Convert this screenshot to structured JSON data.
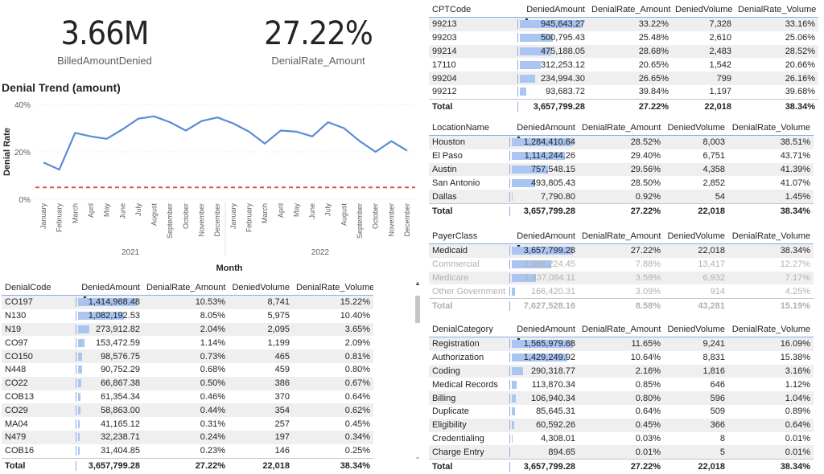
{
  "kpis": {
    "billed_amount_denied": {
      "value": "3.66M",
      "label": "BilledAmountDenied"
    },
    "denial_rate_amount": {
      "value": "27.22%",
      "label": "DenialRate_Amount"
    }
  },
  "trend": {
    "title": "Denial Trend (amount)",
    "ylabel": "Denial Rate",
    "xlabel": "Month",
    "y_ticks": [
      "40%",
      "20%",
      "0%"
    ],
    "months": [
      "January",
      "February",
      "March",
      "April",
      "May",
      "June",
      "July",
      "August",
      "September",
      "October",
      "November",
      "December",
      "January",
      "February",
      "March",
      "April",
      "May",
      "June",
      "July",
      "August",
      "September",
      "October",
      "November",
      "December"
    ],
    "years": [
      "2021",
      "2022"
    ]
  },
  "chart_data": {
    "type": "line",
    "title": "Denial Trend (amount)",
    "xlabel": "Month",
    "ylabel": "Denial Rate",
    "x": [
      "Jan 2021",
      "Feb 2021",
      "Mar 2021",
      "Apr 2021",
      "May 2021",
      "Jun 2021",
      "Jul 2021",
      "Aug 2021",
      "Sep 2021",
      "Oct 2021",
      "Nov 2021",
      "Dec 2021",
      "Jan 2022",
      "Feb 2022",
      "Mar 2022",
      "Apr 2022",
      "May 2022",
      "Jun 2022",
      "Jul 2022",
      "Aug 2022",
      "Sep 2022",
      "Oct 2022",
      "Nov 2022",
      "Dec 2022"
    ],
    "series": [
      {
        "values": [
          15.5,
          12.5,
          28,
          26.5,
          25.5,
          29.5,
          34,
          35,
          32.5,
          29,
          33,
          34.5,
          32,
          28.5,
          23.5,
          29,
          28.5,
          26.5,
          32.5,
          30,
          24.5,
          20,
          24.5,
          20.5
        ]
      }
    ],
    "reference_line": 5,
    "ylim": [
      0,
      40
    ],
    "y_ticks": [
      0,
      20,
      40
    ],
    "grid": true,
    "colors": {
      "line": "#5b8bd6",
      "reference": "#d9534f"
    }
  },
  "tables": {
    "denial_code": {
      "headers": [
        "DenialCode",
        "DeniedAmount",
        "DenialRate_Amount",
        "DeniedVolume",
        "DenialRate_Volume"
      ],
      "rows": [
        [
          "CO197",
          "1,414,968.48",
          "10.53%",
          "8,741",
          "15.22%"
        ],
        [
          "N130",
          "1,082,192.53",
          "8.05%",
          "5,975",
          "10.40%"
        ],
        [
          "N19",
          "273,912.82",
          "2.04%",
          "2,095",
          "3.65%"
        ],
        [
          "CO97",
          "153,472.59",
          "1.14%",
          "1,199",
          "2.09%"
        ],
        [
          "CO150",
          "98,576.75",
          "0.73%",
          "465",
          "0.81%"
        ],
        [
          "N448",
          "90,752.29",
          "0.68%",
          "459",
          "0.80%"
        ],
        [
          "CO22",
          "66,867.38",
          "0.50%",
          "386",
          "0.67%"
        ],
        [
          "COB13",
          "61,354.34",
          "0.46%",
          "370",
          "0.64%"
        ],
        [
          "CO29",
          "58,863.00",
          "0.44%",
          "354",
          "0.62%"
        ],
        [
          "MA04",
          "41,165.12",
          "0.31%",
          "257",
          "0.45%"
        ],
        [
          "N479",
          "32,238.71",
          "0.24%",
          "197",
          "0.34%"
        ],
        [
          "COB16",
          "31,404.85",
          "0.23%",
          "146",
          "0.25%"
        ]
      ],
      "bars": [
        1414968.48,
        1082192.53,
        273912.82,
        153472.59,
        98576.75,
        90752.29,
        66867.38,
        61354.34,
        58863.0,
        41165.12,
        32238.71,
        31404.85
      ],
      "total": [
        "Total",
        "3,657,799.28",
        "27.22%",
        "22,018",
        "38.34%"
      ]
    },
    "cpt_code": {
      "headers": [
        "CPTCode",
        "DeniedAmount",
        "DenialRate_Amount",
        "DeniedVolume",
        "DenialRate_Volume"
      ],
      "rows": [
        [
          "99213",
          "945,643.27",
          "33.22%",
          "7,328",
          "33.16%"
        ],
        [
          "99203",
          "500,795.43",
          "25.48%",
          "2,610",
          "25.06%"
        ],
        [
          "99214",
          "475,188.05",
          "28.68%",
          "2,483",
          "28.52%"
        ],
        [
          "17110",
          "312,253.12",
          "20.65%",
          "1,542",
          "20.66%"
        ],
        [
          "99204",
          "234,994.30",
          "26.65%",
          "799",
          "26.16%"
        ],
        [
          "99212",
          "93,683.72",
          "39.84%",
          "1,197",
          "39.68%"
        ]
      ],
      "bars": [
        945643.27,
        500795.43,
        475188.05,
        312253.12,
        234994.3,
        93683.72
      ],
      "total": [
        "Total",
        "3,657,799.28",
        "27.22%",
        "22,018",
        "38.34%"
      ]
    },
    "location": {
      "headers": [
        "LocationName",
        "DeniedAmount",
        "DenialRate_Amount",
        "DeniedVolume",
        "DenialRate_Volume"
      ],
      "rows": [
        [
          "Houston",
          "1,284,410.64",
          "28.52%",
          "8,003",
          "38.51%"
        ],
        [
          "El Paso",
          "1,114,244.26",
          "29.40%",
          "6,751",
          "43.71%"
        ],
        [
          "Austin",
          "757,548.15",
          "29.56%",
          "4,358",
          "41.39%"
        ],
        [
          "San Antonio",
          "493,805.43",
          "28.50%",
          "2,852",
          "41.07%"
        ],
        [
          "Dallas",
          "7,790.80",
          "0.92%",
          "54",
          "1.45%"
        ]
      ],
      "bars": [
        1284410.64,
        1114244.26,
        757548.15,
        493805.43,
        7790.8
      ],
      "total": [
        "Total",
        "3,657,799.28",
        "27.22%",
        "22,018",
        "38.34%"
      ]
    },
    "payer_class": {
      "headers": [
        "PayerClass",
        "DeniedAmount",
        "DenialRate_Amount",
        "DeniedVolume",
        "DenialRate_Volume"
      ],
      "rows": [
        [
          "Medicaid",
          "3,657,799.28",
          "27.22%",
          "22,018",
          "38.34%"
        ],
        [
          "Commercial",
          "2,366,224.45",
          "7.88%",
          "13,417",
          "12.27%"
        ],
        [
          "Medicare",
          "1,437,084.11",
          "3.59%",
          "6,932",
          "7.17%"
        ],
        [
          "Other Government",
          "166,420.31",
          "3.09%",
          "914",
          "4.25%"
        ]
      ],
      "bars": [
        3657799.28,
        2366224.45,
        1437084.11,
        166420.31
      ],
      "faded_rows": [
        1,
        2,
        3
      ],
      "total": [
        "Total",
        "7,627,528.16",
        "8.58%",
        "43,281",
        "15.19%"
      ]
    },
    "denial_category": {
      "headers": [
        "DenialCategory",
        "DeniedAmount",
        "DenialRate_Amount",
        "DeniedVolume",
        "DenialRate_Volume"
      ],
      "rows": [
        [
          "Registration",
          "1,565,979.68",
          "11.65%",
          "9,241",
          "16.09%"
        ],
        [
          "Authorization",
          "1,429,249.92",
          "10.64%",
          "8,831",
          "15.38%"
        ],
        [
          "Coding",
          "290,318.77",
          "2.16%",
          "1,816",
          "3.16%"
        ],
        [
          "Medical Records",
          "113,870.34",
          "0.85%",
          "646",
          "1.12%"
        ],
        [
          "Billing",
          "106,940.34",
          "0.80%",
          "596",
          "1.04%"
        ],
        [
          "Duplicate",
          "85,645.31",
          "0.64%",
          "509",
          "0.89%"
        ],
        [
          "Eligibility",
          "60,592.26",
          "0.45%",
          "366",
          "0.64%"
        ],
        [
          "Credentialing",
          "4,308.01",
          "0.03%",
          "8",
          "0.01%"
        ],
        [
          "Charge Entry",
          "894.65",
          "0.01%",
          "5",
          "0.01%"
        ]
      ],
      "bars": [
        1565979.68,
        1429249.92,
        290318.77,
        113870.34,
        106940.34,
        85645.31,
        60592.26,
        4308.01,
        894.65
      ],
      "total": [
        "Total",
        "3,657,799.28",
        "27.22%",
        "22,018",
        "38.34%"
      ]
    }
  },
  "icons": {
    "sort": "sort-desc-icon",
    "scroll_up": "chevron-up-icon",
    "scroll_down": "chevron-down-icon"
  }
}
